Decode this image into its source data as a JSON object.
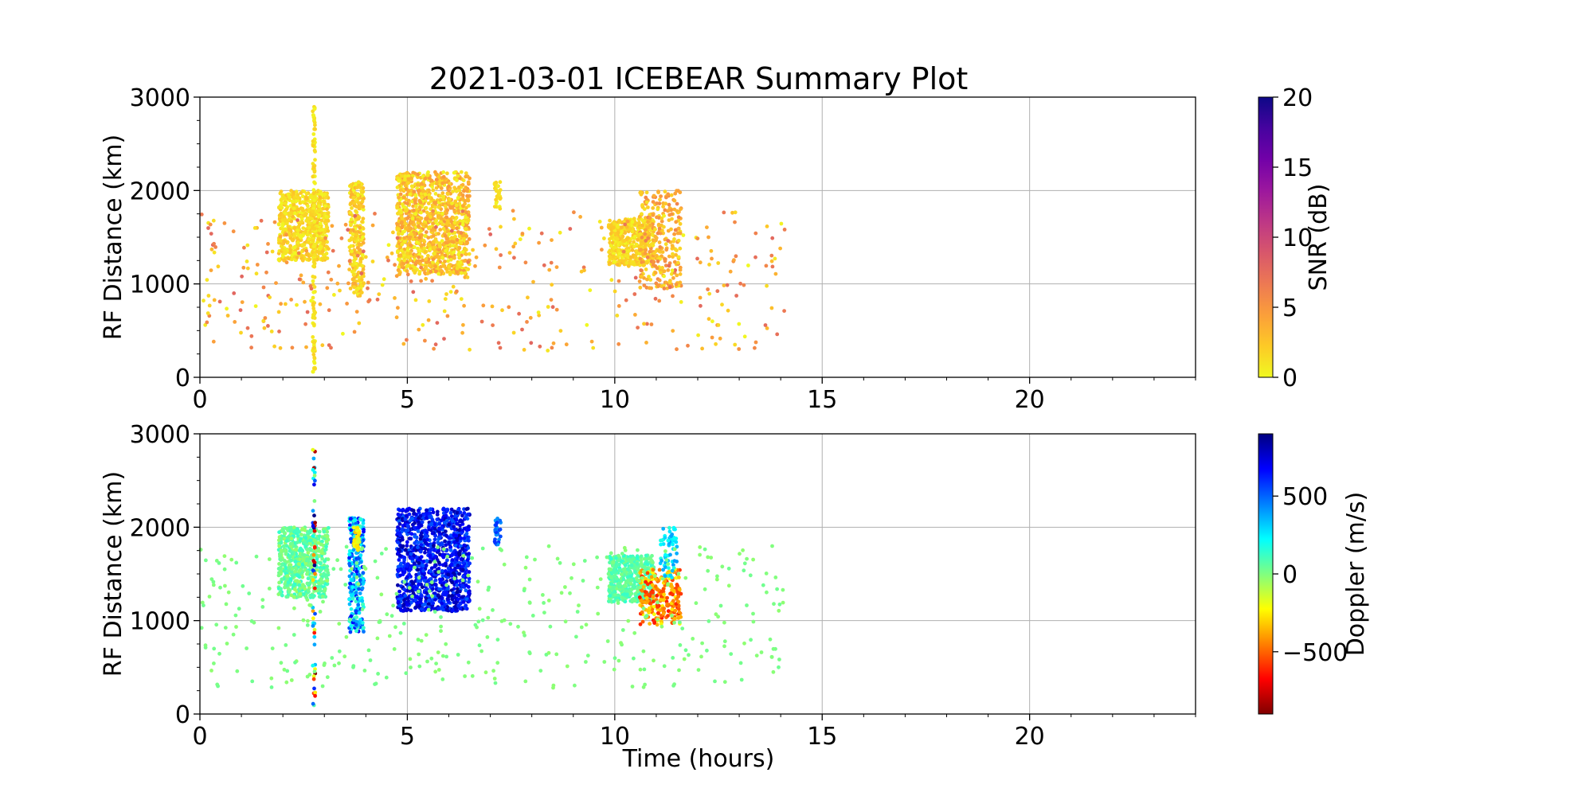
{
  "chart_data": [
    {
      "type": "scatter",
      "title": "2021-03-01 ICEBEAR Summary Plot",
      "xlabel": "",
      "ylabel": "RF Distance (km)",
      "xlim": [
        0,
        24
      ],
      "ylim": [
        0,
        3000
      ],
      "x_ticks": [
        0,
        5,
        10,
        15,
        20
      ],
      "y_ticks": [
        0,
        1000,
        2000,
        3000
      ],
      "grid": true,
      "colorbar": {
        "label": "SNR (dB)",
        "range": [
          0,
          20
        ],
        "ticks": [
          0,
          5,
          10,
          15,
          20
        ],
        "colormap": "plasma_r"
      },
      "clusters": [
        {
          "t": [
            1.9,
            3.1
          ],
          "r": [
            1250,
            2000
          ],
          "n": 600,
          "c": [
            0,
            3
          ]
        },
        {
          "t": [
            2.72,
            2.78
          ],
          "r": [
            50,
            2920
          ],
          "n": 140,
          "c": [
            0,
            2
          ]
        },
        {
          "t": [
            3.6,
            3.95
          ],
          "r": [
            870,
            2100
          ],
          "n": 260,
          "c": [
            0,
            4
          ]
        },
        {
          "t": [
            4.75,
            6.5
          ],
          "r": [
            1100,
            2200
          ],
          "n": 1100,
          "c": [
            0,
            5
          ]
        },
        {
          "t": [
            7.1,
            7.25
          ],
          "r": [
            1800,
            2100
          ],
          "n": 30,
          "c": [
            0,
            2
          ]
        },
        {
          "t": [
            9.85,
            10.95
          ],
          "r": [
            1200,
            1700
          ],
          "n": 450,
          "c": [
            0,
            3
          ]
        },
        {
          "t": [
            10.6,
            11.6
          ],
          "r": [
            950,
            2000
          ],
          "n": 260,
          "c": [
            1,
            6
          ]
        },
        {
          "t": [
            0,
            14.1
          ],
          "r": [
            280,
            1800
          ],
          "n": 380,
          "c": [
            0,
            8
          ]
        }
      ]
    },
    {
      "type": "scatter",
      "title": "",
      "xlabel": "Time (hours)",
      "ylabel": "RF Distance (km)",
      "xlim": [
        0,
        24
      ],
      "ylim": [
        0,
        3000
      ],
      "x_ticks": [
        0,
        5,
        10,
        15,
        20
      ],
      "y_ticks": [
        0,
        1000,
        2000,
        3000
      ],
      "grid": true,
      "colorbar": {
        "label": "Doppler (m/s)",
        "range": [
          -900,
          900
        ],
        "ticks": [
          -500,
          0,
          500
        ],
        "tick_labels": [
          "−500",
          "0",
          "500"
        ],
        "colormap": "jet_r"
      },
      "clusters": [
        {
          "t": [
            1.9,
            3.1
          ],
          "r": [
            1250,
            2000
          ],
          "n": 600,
          "c": [
            -50,
            150
          ]
        },
        {
          "t": [
            2.72,
            2.78
          ],
          "r": [
            50,
            2920
          ],
          "n": 60,
          "c": [
            -900,
            900
          ]
        },
        {
          "t": [
            3.6,
            3.95
          ],
          "r": [
            870,
            2100
          ],
          "n": 260,
          "c": [
            100,
            700
          ]
        },
        {
          "t": [
            3.7,
            3.85
          ],
          "r": [
            1750,
            2000
          ],
          "n": 40,
          "c": [
            -350,
            -150
          ]
        },
        {
          "t": [
            4.75,
            6.5
          ],
          "r": [
            1100,
            2200
          ],
          "n": 1100,
          "c": [
            500,
            850
          ]
        },
        {
          "t": [
            7.1,
            7.25
          ],
          "r": [
            1800,
            2100
          ],
          "n": 30,
          "c": [
            400,
            600
          ]
        },
        {
          "t": [
            9.85,
            10.95
          ],
          "r": [
            1200,
            1700
          ],
          "n": 450,
          "c": [
            0,
            150
          ]
        },
        {
          "t": [
            10.6,
            11.6
          ],
          "r": [
            950,
            1550
          ],
          "n": 240,
          "c": [
            -650,
            -200
          ]
        },
        {
          "t": [
            11.1,
            11.5
          ],
          "r": [
            1450,
            2000
          ],
          "n": 60,
          "c": [
            150,
            400
          ]
        },
        {
          "t": [
            0,
            14.1
          ],
          "r": [
            280,
            1800
          ],
          "n": 380,
          "c": [
            -30,
            30
          ]
        }
      ]
    }
  ]
}
